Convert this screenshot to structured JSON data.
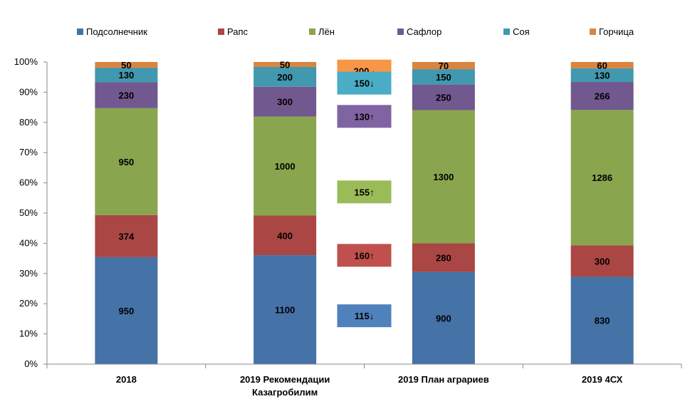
{
  "chart_data": {
    "type": "bar",
    "stacked": "percent",
    "categories": [
      "2018",
      "2019 Рекомендации Казагробилим",
      "2019 План аграриев",
      "2019 4СХ"
    ],
    "category_lines": [
      [
        "2018"
      ],
      [
        "2019 Рекомендации",
        "Казагробилим"
      ],
      [
        "2019 План аграриев"
      ],
      [
        "2019 4СХ"
      ]
    ],
    "series": [
      {
        "name": "Подсолнечник",
        "color": "#4572A7",
        "values": [
          950,
          1100,
          900,
          830
        ]
      },
      {
        "name": "Рапс",
        "color": "#AA4643",
        "values": [
          374,
          400,
          280,
          300
        ]
      },
      {
        "name": "Лён",
        "color": "#89A54E",
        "values": [
          950,
          1000,
          1300,
          1286
        ]
      },
      {
        "name": "Сафлор",
        "color": "#71588F",
        "values": [
          230,
          300,
          250,
          266
        ]
      },
      {
        "name": "Соя",
        "color": "#4198AF",
        "values": [
          130,
          200,
          150,
          130
        ]
      },
      {
        "name": "Горчица",
        "color": "#DB843D",
        "values": [
          50,
          50,
          70,
          60
        ]
      }
    ],
    "y_ticks": [
      "0%",
      "10%",
      "20%",
      "30%",
      "40%",
      "50%",
      "60%",
      "70%",
      "80%",
      "90%",
      "100%"
    ],
    "ylim": [
      0,
      100
    ],
    "legend_position": "top",
    "grid": false,
    "annotations": [
      {
        "text": "200 -",
        "series": "Горчица",
        "color": "#F79646",
        "level_pct": 97
      },
      {
        "text": "150↓",
        "series": "Соя",
        "color": "#4BACC6",
        "level_pct": 93
      },
      {
        "text": "130↑",
        "series": "Сафлор",
        "color": "#8064A2",
        "level_pct": 82
      },
      {
        "text": "155↑",
        "series": "Лён",
        "color": "#9BBB59",
        "level_pct": 57
      },
      {
        "text": "160↑",
        "series": "Рапс",
        "color": "#C0504D",
        "level_pct": 36
      },
      {
        "text": "115↓",
        "series": "Подсолнечник",
        "color": "#4F81BD",
        "level_pct": 16
      }
    ]
  }
}
